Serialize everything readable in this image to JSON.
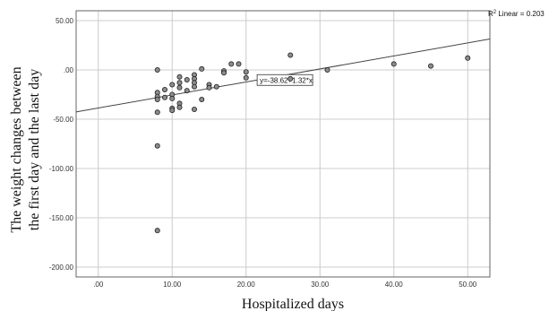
{
  "chart_data": {
    "type": "scatter",
    "xlabel": "Hospitalized days",
    "ylabel_lines": [
      "The weight changes between",
      "the first day and the last day"
    ],
    "xlim": [
      -3,
      53
    ],
    "ylim": [
      -210,
      60
    ],
    "x_ticks": [
      0,
      10,
      20,
      30,
      40,
      50
    ],
    "x_tick_labels": [
      ".00",
      "10.00",
      "20.00",
      "30.00",
      "40.00",
      "50.00"
    ],
    "y_ticks": [
      50,
      0,
      -50,
      -100,
      -150,
      -200
    ],
    "y_tick_labels": [
      "50.00",
      ".00",
      "-50.00",
      "-100.00",
      "-150.00",
      "-200.00"
    ],
    "grid": true,
    "fit_line": {
      "intercept": -38.62,
      "slope": 1.32,
      "label": "y=-38.62+1.32*x"
    },
    "r2_label": {
      "prefix": "R",
      "sup": "2",
      "text": " Linear = 0.203"
    },
    "points": [
      {
        "x": 8,
        "y": 0
      },
      {
        "x": 8,
        "y": -23
      },
      {
        "x": 8,
        "y": -27
      },
      {
        "x": 8,
        "y": -30
      },
      {
        "x": 8,
        "y": -43
      },
      {
        "x": 8,
        "y": -77
      },
      {
        "x": 8,
        "y": -163
      },
      {
        "x": 9,
        "y": -20
      },
      {
        "x": 9,
        "y": -28
      },
      {
        "x": 10,
        "y": -15
      },
      {
        "x": 10,
        "y": -25
      },
      {
        "x": 10,
        "y": -29
      },
      {
        "x": 10,
        "y": -39
      },
      {
        "x": 10,
        "y": -41
      },
      {
        "x": 11,
        "y": -7
      },
      {
        "x": 11,
        "y": -13
      },
      {
        "x": 11,
        "y": -18
      },
      {
        "x": 11,
        "y": -34
      },
      {
        "x": 11,
        "y": -38
      },
      {
        "x": 12,
        "y": -10
      },
      {
        "x": 12,
        "y": -21
      },
      {
        "x": 13,
        "y": -5
      },
      {
        "x": 13,
        "y": -9
      },
      {
        "x": 13,
        "y": -13
      },
      {
        "x": 13,
        "y": -17
      },
      {
        "x": 13,
        "y": -40
      },
      {
        "x": 14,
        "y": 1
      },
      {
        "x": 14,
        "y": -30
      },
      {
        "x": 15,
        "y": -15
      },
      {
        "x": 15,
        "y": -18
      },
      {
        "x": 16,
        "y": -17
      },
      {
        "x": 17,
        "y": -1
      },
      {
        "x": 17,
        "y": -3
      },
      {
        "x": 18,
        "y": 6
      },
      {
        "x": 19,
        "y": 6
      },
      {
        "x": 20,
        "y": -2
      },
      {
        "x": 20,
        "y": -8
      },
      {
        "x": 26,
        "y": 15
      },
      {
        "x": 26,
        "y": -9
      },
      {
        "x": 31,
        "y": 0
      },
      {
        "x": 40,
        "y": 6
      },
      {
        "x": 45,
        "y": 4
      },
      {
        "x": 50,
        "y": 12
      }
    ],
    "colors": {
      "point_fill": "#8c8c8c",
      "point_stroke": "#222222",
      "grid": "#cccccc",
      "frame": "#666666",
      "fit_line": "#444444"
    }
  }
}
